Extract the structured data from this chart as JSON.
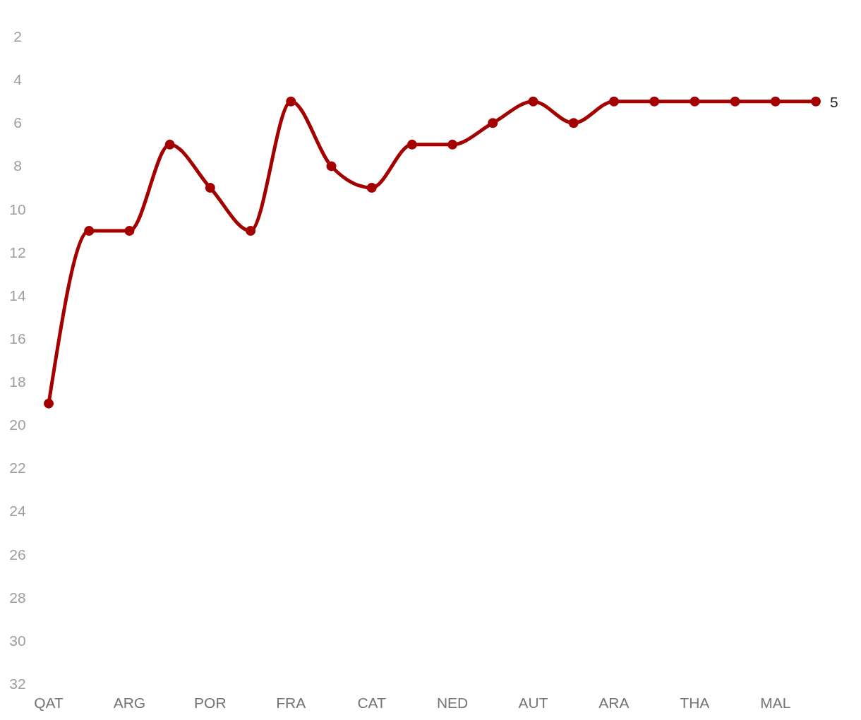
{
  "chart_data": {
    "type": "line",
    "categories": [
      "QAT",
      null,
      "ARG",
      null,
      "POR",
      null,
      "FRA",
      null,
      "CAT",
      null,
      "NED",
      null,
      "AUT",
      null,
      "ARA",
      null,
      "THA",
      null,
      "MAL",
      null
    ],
    "series": [
      {
        "color": "#a50000",
        "values": [
          19,
          11,
          11,
          7,
          9,
          11,
          5,
          8,
          9,
          7,
          7,
          6,
          5,
          6,
          5,
          5,
          5,
          5,
          5,
          5
        ],
        "value_labels": [
          null,
          null,
          null,
          null,
          null,
          null,
          null,
          null,
          null,
          null,
          null,
          null,
          null,
          null,
          null,
          null,
          null,
          null,
          null,
          "5"
        ]
      }
    ],
    "ylim": [
      32,
      2
    ],
    "yticks": [
      2,
      4,
      6,
      8,
      10,
      12,
      14,
      16,
      18,
      20,
      22,
      24,
      26,
      28,
      30,
      32
    ],
    "grid": false,
    "marker": "circle",
    "line_style": "solid"
  }
}
